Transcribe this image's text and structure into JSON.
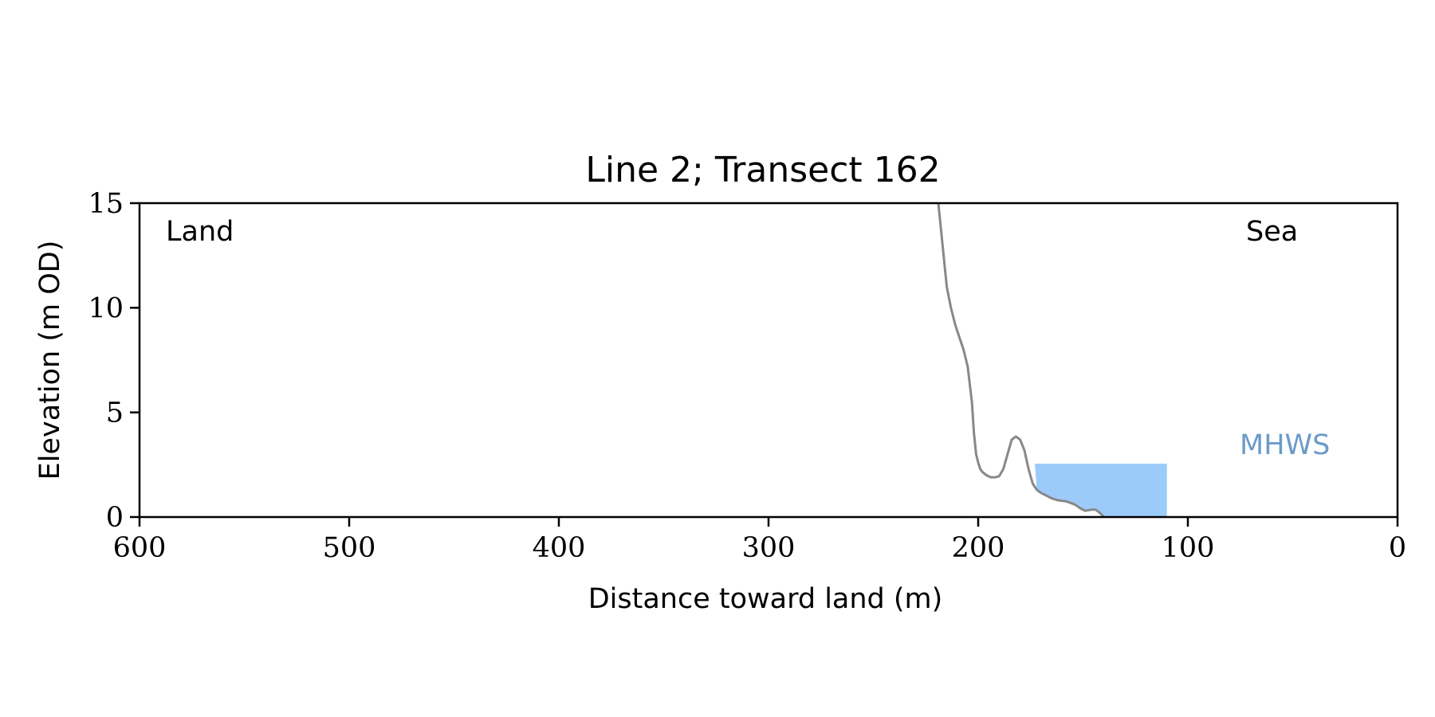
{
  "chart_data": {
    "type": "line",
    "title": "Line 2; Transect 162",
    "xlabel": "Distance toward land (m)",
    "ylabel": "Elevation (m OD)",
    "xlim": [
      600,
      0
    ],
    "ylim": [
      0,
      15
    ],
    "x_ticks": [
      600,
      500,
      400,
      300,
      200,
      100,
      0
    ],
    "y_ticks": [
      0,
      5,
      10,
      15
    ],
    "x_tick_labels": [
      "600",
      "500",
      "400",
      "300",
      "200",
      "100",
      "0"
    ],
    "y_tick_labels": [
      "0",
      "5",
      "10",
      "15"
    ],
    "grid": false,
    "legend": false,
    "series": [
      {
        "color": "#888888",
        "x": [
          219,
          217,
          215,
          213,
          211,
          209,
          207,
          205,
          203,
          202,
          201,
          200,
          199,
          198,
          196,
          194,
          192,
          190,
          188,
          186,
          184,
          182,
          180,
          178,
          176,
          174,
          172,
          170,
          168,
          165,
          162,
          158,
          154,
          151,
          149,
          146,
          144,
          142,
          140
        ],
        "y": [
          15.0,
          13.0,
          11.0,
          10.0,
          9.2,
          8.6,
          8.0,
          7.2,
          5.5,
          4.0,
          3.0,
          2.6,
          2.3,
          2.15,
          2.0,
          1.9,
          1.9,
          1.95,
          2.3,
          3.0,
          3.7,
          3.85,
          3.7,
          3.2,
          2.3,
          1.6,
          1.3,
          1.15,
          1.05,
          0.9,
          0.8,
          0.75,
          0.6,
          0.4,
          0.3,
          0.35,
          0.35,
          0.2,
          0.0
        ]
      }
    ],
    "mhws_region": {
      "label": "MHWS",
      "color": "#9ccbfa",
      "label_color": "#6b9bc9",
      "x_start": 173,
      "x_end": 110,
      "level": 2.55
    },
    "annotations": {
      "land": "Land",
      "sea": "Sea"
    }
  }
}
